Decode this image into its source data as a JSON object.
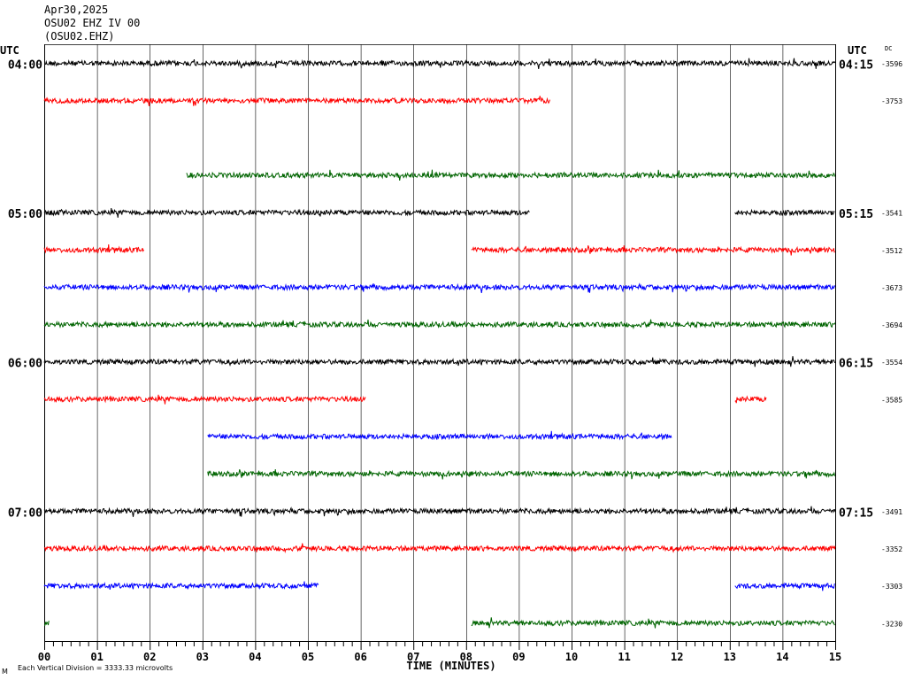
{
  "header": {
    "date": "Apr30,2025",
    "station": "OSU02 EHZ IV 00",
    "channel_code": "(OSU02.EHZ)"
  },
  "footer": {
    "corner_mark": "M",
    "scale_note": "Each Vertical Division = 3333.33 microvolts"
  },
  "chart_data": {
    "type": "line",
    "title": "",
    "xlabel": "TIME (MINUTES)",
    "ylabel": "",
    "x_ticks": [
      "00",
      "01",
      "02",
      "03",
      "04",
      "05",
      "06",
      "07",
      "08",
      "09",
      "10",
      "11",
      "12",
      "13",
      "14",
      "15"
    ],
    "xlim": [
      0,
      15
    ],
    "grid": "vertical lines every minute",
    "left_axis_label": "UTC",
    "right_axis_label": "UTC",
    "dc_header": "DC",
    "colors": {
      "black": "#000000",
      "red": "#ff0000",
      "blue": "#0000ff",
      "green": "#006400"
    },
    "rows": [
      {
        "color": "black",
        "left": "04:00",
        "right": "04:15",
        "dc": "-3596",
        "segments": [
          [
            0,
            15
          ]
        ]
      },
      {
        "color": "red",
        "left": "",
        "right": "",
        "dc": "-3753",
        "segments": [
          [
            0,
            9.6
          ]
        ]
      },
      {
        "color": "blue",
        "left": "",
        "right": "",
        "dc": "",
        "segments": []
      },
      {
        "color": "green",
        "left": "",
        "right": "",
        "dc": "",
        "segments": [
          [
            2.7,
            15
          ]
        ]
      },
      {
        "color": "black",
        "left": "05:00",
        "right": "05:15",
        "dc": "-3541",
        "segments": [
          [
            0,
            9.2
          ],
          [
            13.1,
            15
          ]
        ]
      },
      {
        "color": "red",
        "left": "",
        "right": "",
        "dc": "-3512",
        "segments": [
          [
            0,
            1.9
          ],
          [
            8.1,
            15
          ]
        ]
      },
      {
        "color": "blue",
        "left": "",
        "right": "",
        "dc": "-3673",
        "segments": [
          [
            0,
            15
          ]
        ]
      },
      {
        "color": "green",
        "left": "",
        "right": "",
        "dc": "-3694",
        "segments": [
          [
            0,
            15
          ]
        ]
      },
      {
        "color": "black",
        "left": "06:00",
        "right": "06:15",
        "dc": "-3554",
        "segments": [
          [
            0,
            15
          ]
        ]
      },
      {
        "color": "red",
        "left": "",
        "right": "",
        "dc": "-3585",
        "segments": [
          [
            0,
            6.1
          ],
          [
            13.1,
            13.7
          ]
        ]
      },
      {
        "color": "blue",
        "left": "",
        "right": "",
        "dc": "",
        "segments": [
          [
            3.1,
            11.9
          ]
        ]
      },
      {
        "color": "green",
        "left": "",
        "right": "",
        "dc": "",
        "segments": [
          [
            3.1,
            15
          ]
        ]
      },
      {
        "color": "black",
        "left": "07:00",
        "right": "07:15",
        "dc": "-3491",
        "segments": [
          [
            0,
            15
          ]
        ]
      },
      {
        "color": "red",
        "left": "",
        "right": "",
        "dc": "-3352",
        "segments": [
          [
            0,
            15
          ]
        ]
      },
      {
        "color": "blue",
        "left": "",
        "right": "",
        "dc": "-3303",
        "segments": [
          [
            0,
            5.2
          ],
          [
            13.1,
            15
          ]
        ]
      },
      {
        "color": "green",
        "left": "",
        "right": "",
        "dc": "-3230",
        "segments": [
          [
            0,
            0.1
          ],
          [
            8.1,
            15
          ]
        ]
      }
    ]
  }
}
